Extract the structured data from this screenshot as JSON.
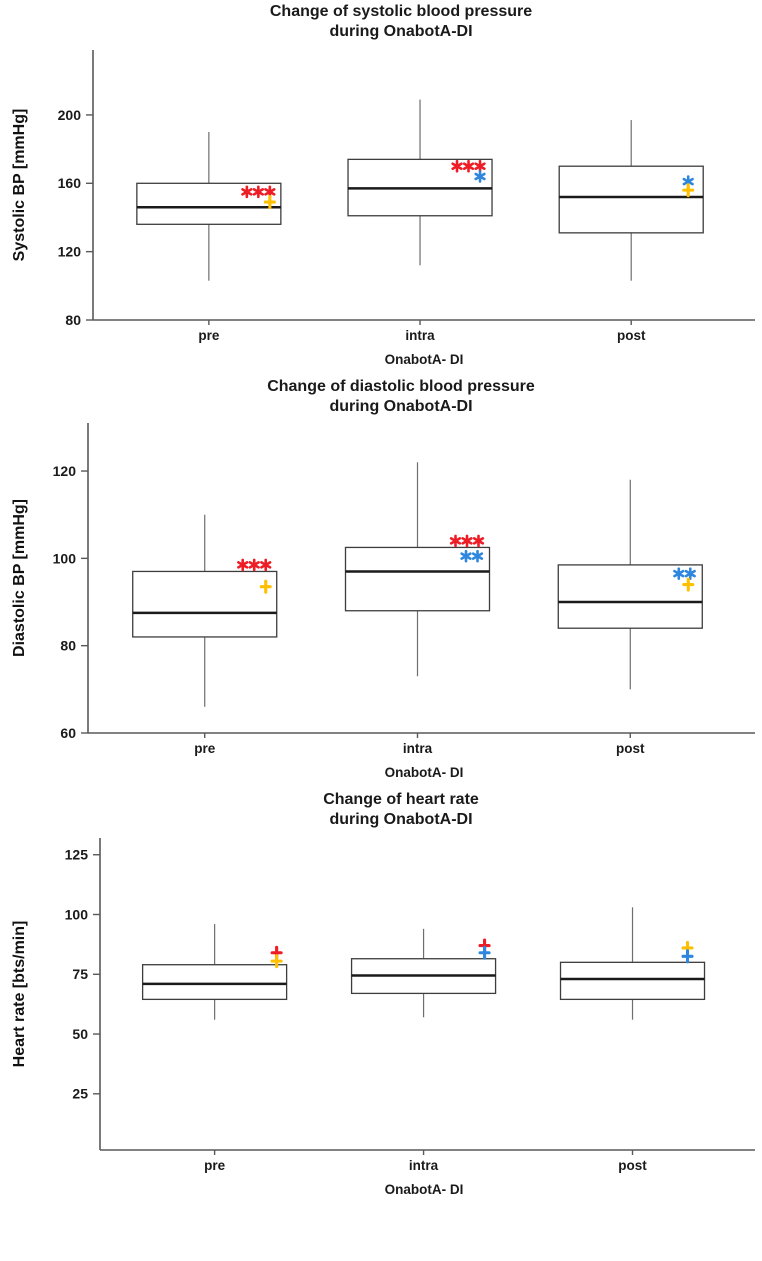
{
  "page": {
    "background": "#ffffff"
  },
  "colors": {
    "red": "#ee1c25",
    "gold": "#ffc000",
    "blue": "#2e86de",
    "axis": "#595959",
    "whisker": "#6e6e6e",
    "box_stroke": "#3d3d3d",
    "box_fill": "#ffffff",
    "median": "#1a1a1a",
    "text": "#1a1a1a"
  },
  "chart_data": [
    {
      "type": "box",
      "title_line1": "Change of systolic blood pressure",
      "title_line2": "during OnabotA-DI",
      "ylabel": "Systolic BP [mmHg]",
      "xlabel": "OnabotA- DI",
      "categories": [
        "pre",
        "intra",
        "post"
      ],
      "ylim": [
        80,
        238
      ],
      "yticks": [
        80,
        120,
        160,
        200
      ],
      "grid": false,
      "legend": false,
      "groups": [
        {
          "label": "pre",
          "whisker_low": 103,
          "q1": 136,
          "median": 146,
          "q3": 160,
          "whisker_high": 190,
          "annotations": [
            {
              "glyph": "***",
              "color": "red",
              "y": 155,
              "dx": -6
            },
            {
              "glyph": "+",
              "color": "gold",
              "y": 149,
              "dx": -6
            }
          ]
        },
        {
          "label": "intra",
          "whisker_low": 112,
          "q1": 141,
          "median": 157,
          "q3": 174,
          "whisker_high": 209,
          "annotations": [
            {
              "glyph": "***",
              "color": "red",
              "y": 170,
              "dx": -7
            },
            {
              "glyph": "*",
              "color": "blue",
              "y": 164,
              "dx": -7
            }
          ]
        },
        {
          "label": "post",
          "whisker_low": 103,
          "q1": 131,
          "median": 152,
          "q3": 170,
          "whisker_high": 197,
          "annotations": [
            {
              "glyph": "*",
              "color": "blue",
              "y": 161,
              "dx": -10
            },
            {
              "glyph": "+",
              "color": "gold",
              "y": 156,
              "dx": -10
            }
          ]
        }
      ]
    },
    {
      "type": "box",
      "title_line1": "Change of diastolic blood pressure",
      "title_line2": "during OnabotA-DI",
      "ylabel": "Diastolic BP [mmHg]",
      "xlabel": "OnabotA- DI",
      "categories": [
        "pre",
        "intra",
        "post"
      ],
      "ylim": [
        60,
        131
      ],
      "yticks": [
        60,
        80,
        100,
        120
      ],
      "grid": false,
      "legend": false,
      "groups": [
        {
          "label": "pre",
          "whisker_low": 66,
          "q1": 82,
          "median": 87.5,
          "q3": 97,
          "whisker_high": 110,
          "annotations": [
            {
              "glyph": "***",
              "color": "red",
              "y": 98.5,
              "dx": -6
            },
            {
              "glyph": "+",
              "color": "gold",
              "y": 93.5,
              "dx": -6
            }
          ]
        },
        {
          "label": "intra",
          "whisker_low": 73,
          "q1": 88,
          "median": 97,
          "q3": 102.5,
          "whisker_high": 122,
          "annotations": [
            {
              "glyph": "***",
              "color": "red",
              "y": 104,
              "dx": -6
            },
            {
              "glyph": "**",
              "color": "blue",
              "y": 100.5,
              "dx": -7
            }
          ]
        },
        {
          "label": "post",
          "whisker_low": 70,
          "q1": 84,
          "median": 90,
          "q3": 98.5,
          "whisker_high": 118,
          "annotations": [
            {
              "glyph": "**",
              "color": "blue",
              "y": 96.5,
              "dx": -7
            },
            {
              "glyph": "+",
              "color": "gold",
              "y": 94,
              "dx": -9
            }
          ]
        }
      ]
    },
    {
      "type": "box",
      "title_line1": "Change of heart rate",
      "title_line2": "during OnabotA-DI",
      "ylabel": "Heart rate [bts/min]",
      "xlabel": "OnabotA- DI",
      "categories": [
        "pre",
        "intra",
        "post"
      ],
      "ylim": [
        1.5,
        132
      ],
      "yticks": [
        25,
        50,
        75,
        100,
        125
      ],
      "grid": false,
      "legend": false,
      "groups": [
        {
          "label": "pre",
          "whisker_low": 56,
          "q1": 64.5,
          "median": 71,
          "q3": 79,
          "whisker_high": 96,
          "annotations": [
            {
              "glyph": "+",
              "color": "red",
              "y": 84,
              "dx": -5
            },
            {
              "glyph": "+",
              "color": "gold",
              "y": 80.5,
              "dx": -5
            }
          ]
        },
        {
          "label": "intra",
          "whisker_low": 57,
          "q1": 67,
          "median": 74.5,
          "q3": 81.5,
          "whisker_high": 94,
          "annotations": [
            {
              "glyph": "+",
              "color": "red",
              "y": 87,
              "dx": -6
            },
            {
              "glyph": "+",
              "color": "blue",
              "y": 84,
              "dx": -6
            }
          ]
        },
        {
          "label": "post",
          "whisker_low": 56,
          "q1": 64.5,
          "median": 73,
          "q3": 80,
          "whisker_high": 103,
          "annotations": [
            {
              "glyph": "+",
              "color": "gold",
              "y": 86,
              "dx": -12
            },
            {
              "glyph": "+",
              "color": "blue",
              "y": 82.5,
              "dx": -12
            }
          ]
        }
      ]
    }
  ]
}
